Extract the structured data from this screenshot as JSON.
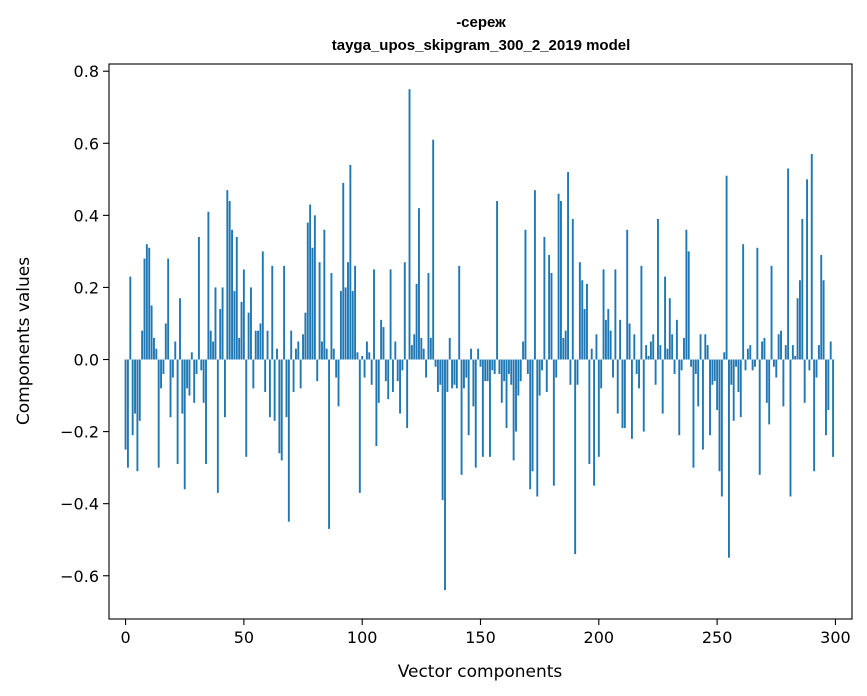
{
  "chart_data": {
    "type": "bar",
    "title_line1": "-сереж",
    "title_line2": "tayga_upos_skipgram_300_2_2019 model",
    "xlabel": "Vector components",
    "ylabel": "Components values",
    "xlim": [
      -7,
      307
    ],
    "ylim": [
      -0.72,
      0.82
    ],
    "xticks": [
      0,
      50,
      100,
      150,
      200,
      250,
      300
    ],
    "xtick_labels": [
      "0",
      "50",
      "100",
      "150",
      "200",
      "250",
      "300"
    ],
    "yticks": [
      -0.6,
      -0.4,
      -0.2,
      0.0,
      0.2,
      0.4,
      0.6,
      0.8
    ],
    "ytick_labels": [
      "−0.6",
      "−0.4",
      "−0.2",
      "0.0",
      "0.2",
      "0.4",
      "0.6",
      "0.8"
    ],
    "grid": false,
    "bar_color": "#1f77b4",
    "x": [
      0,
      1,
      2,
      3,
      4,
      5,
      6,
      7,
      8,
      9,
      10,
      11,
      12,
      13,
      14,
      15,
      16,
      17,
      18,
      19,
      20,
      21,
      22,
      23,
      24,
      25,
      26,
      27,
      28,
      29,
      30,
      31,
      32,
      33,
      34,
      35,
      36,
      37,
      38,
      39,
      40,
      41,
      42,
      43,
      44,
      45,
      46,
      47,
      48,
      49,
      50,
      51,
      52,
      53,
      54,
      55,
      56,
      57,
      58,
      59,
      60,
      61,
      62,
      63,
      64,
      65,
      66,
      67,
      68,
      69,
      70,
      71,
      72,
      73,
      74,
      75,
      76,
      77,
      78,
      79,
      80,
      81,
      82,
      83,
      84,
      85,
      86,
      87,
      88,
      89,
      90,
      91,
      92,
      93,
      94,
      95,
      96,
      97,
      98,
      99,
      100,
      101,
      102,
      103,
      104,
      105,
      106,
      107,
      108,
      109,
      110,
      111,
      112,
      113,
      114,
      115,
      116,
      117,
      118,
      119,
      120,
      121,
      122,
      123,
      124,
      125,
      126,
      127,
      128,
      129,
      130,
      131,
      132,
      133,
      134,
      135,
      136,
      137,
      138,
      139,
      140,
      141,
      142,
      143,
      144,
      145,
      146,
      147,
      148,
      149,
      150,
      151,
      152,
      153,
      154,
      155,
      156,
      157,
      158,
      159,
      160,
      161,
      162,
      163,
      164,
      165,
      166,
      167,
      168,
      169,
      170,
      171,
      172,
      173,
      174,
      175,
      176,
      177,
      178,
      179,
      180,
      181,
      182,
      183,
      184,
      185,
      186,
      187,
      188,
      189,
      190,
      191,
      192,
      193,
      194,
      195,
      196,
      197,
      198,
      199,
      200,
      201,
      202,
      203,
      204,
      205,
      206,
      207,
      208,
      209,
      210,
      211,
      212,
      213,
      214,
      215,
      216,
      217,
      218,
      219,
      220,
      221,
      222,
      223,
      224,
      225,
      226,
      227,
      228,
      229,
      230,
      231,
      232,
      233,
      234,
      235,
      236,
      237,
      238,
      239,
      240,
      241,
      242,
      243,
      244,
      245,
      246,
      247,
      248,
      249,
      250,
      251,
      252,
      253,
      254,
      255,
      256,
      257,
      258,
      259,
      260,
      261,
      262,
      263,
      264,
      265,
      266,
      267,
      268,
      269,
      270,
      271,
      272,
      273,
      274,
      275,
      276,
      277,
      278,
      279,
      280,
      281,
      282,
      283,
      284,
      285,
      286,
      287,
      288,
      289,
      290,
      291,
      292,
      293,
      294,
      295,
      296,
      297,
      298,
      299
    ],
    "values": [
      -0.25,
      -0.3,
      0.23,
      -0.21,
      -0.15,
      -0.31,
      -0.17,
      0.08,
      0.28,
      0.32,
      0.31,
      0.15,
      0.06,
      0.03,
      -0.3,
      -0.08,
      -0.04,
      0.1,
      0.28,
      -0.16,
      -0.05,
      0.05,
      -0.29,
      0.17,
      -0.15,
      -0.36,
      -0.08,
      -0.1,
      0.02,
      -0.12,
      -0.04,
      0.34,
      -0.03,
      -0.12,
      -0.29,
      0.41,
      0.08,
      0.05,
      0.2,
      -0.37,
      0.14,
      0.2,
      -0.16,
      0.47,
      0.44,
      0.36,
      0.19,
      0.34,
      0.06,
      0.16,
      0.25,
      -0.27,
      0.13,
      0.2,
      -0.08,
      0.08,
      0.08,
      0.1,
      0.3,
      -0.09,
      0.08,
      -0.16,
      0.26,
      -0.17,
      0.03,
      -0.26,
      -0.28,
      0.26,
      -0.16,
      -0.45,
      0.08,
      -0.09,
      0.03,
      0.05,
      -0.08,
      0.07,
      0.13,
      0.38,
      0.43,
      0.31,
      0.4,
      -0.06,
      0.27,
      0.05,
      0.36,
      0.03,
      -0.47,
      0.24,
      0.03,
      -0.05,
      -0.13,
      0.19,
      0.49,
      0.2,
      0.27,
      0.54,
      0.19,
      0.26,
      0.02,
      -0.37,
      0.01,
      -0.05,
      0.05,
      0.02,
      -0.07,
      0.25,
      -0.24,
      -0.12,
      0.11,
      0.09,
      -0.06,
      -0.11,
      0.25,
      -0.09,
      0.05,
      -0.06,
      -0.15,
      -0.03,
      0.27,
      -0.19,
      0.75,
      0.04,
      0.07,
      0.21,
      0.42,
      0.06,
      0.03,
      -0.05,
      0.24,
      0.06,
      0.61,
      -0.02,
      -0.09,
      -0.07,
      -0.39,
      -0.64,
      -0.09,
      0.06,
      -0.08,
      -0.07,
      -0.08,
      0.26,
      -0.32,
      -0.08,
      -0.05,
      -0.21,
      0.03,
      -0.13,
      -0.3,
      0.03,
      -0.02,
      -0.27,
      -0.06,
      -0.06,
      -0.27,
      -0.03,
      -0.04,
      0.44,
      -0.04,
      -0.12,
      -0.06,
      -0.19,
      -0.04,
      -0.07,
      -0.28,
      -0.2,
      -0.1,
      -0.06,
      0.05,
      0.36,
      -0.04,
      -0.36,
      -0.31,
      0.47,
      -0.38,
      -0.1,
      -0.03,
      0.34,
      -0.09,
      0.29,
      0.24,
      -0.35,
      -0.05,
      0.46,
      0.44,
      0.06,
      0.08,
      0.52,
      -0.07,
      0.39,
      -0.54,
      -0.07,
      0.27,
      0.22,
      0.14,
      0.21,
      -0.29,
      0.03,
      -0.35,
      0.07,
      -0.27,
      -0.08,
      0.25,
      0.11,
      0.14,
      0.08,
      -0.05,
      0.25,
      -0.15,
      0.11,
      -0.19,
      -0.19,
      0.36,
      0.1,
      -0.22,
      0.07,
      -0.04,
      -0.08,
      0.26,
      -0.2,
      0.04,
      0.01,
      0.05,
      0.07,
      -0.07,
      0.39,
      0.04,
      -0.15,
      0.23,
      0.03,
      0.17,
      0.07,
      -0.04,
      0.11,
      -0.21,
      -0.03,
      0.06,
      0.36,
      0.3,
      -0.02,
      -0.3,
      -0.04,
      -0.13,
      0.07,
      -0.25,
      0.07,
      0.04,
      -0.21,
      -0.07,
      -0.06,
      -0.14,
      -0.31,
      -0.38,
      0.02,
      0.51,
      -0.55,
      -0.07,
      -0.17,
      -0.02,
      -0.09,
      -0.16,
      0.32,
      -0.03,
      0.03,
      0.04,
      -0.03,
      -0.02,
      0.31,
      -0.32,
      0.05,
      0.06,
      -0.12,
      -0.18,
      0.26,
      -0.02,
      -0.05,
      0.07,
      0.08,
      -0.13,
      0.04,
      0.53,
      -0.38,
      0.04,
      0.01,
      0.17,
      0.22,
      0.39,
      -0.12,
      0.5,
      -0.03,
      0.57,
      -0.31,
      -0.05,
      0.04,
      0.29,
      0.22,
      -0.21,
      -0.14,
      0.05,
      -0.27
    ]
  }
}
